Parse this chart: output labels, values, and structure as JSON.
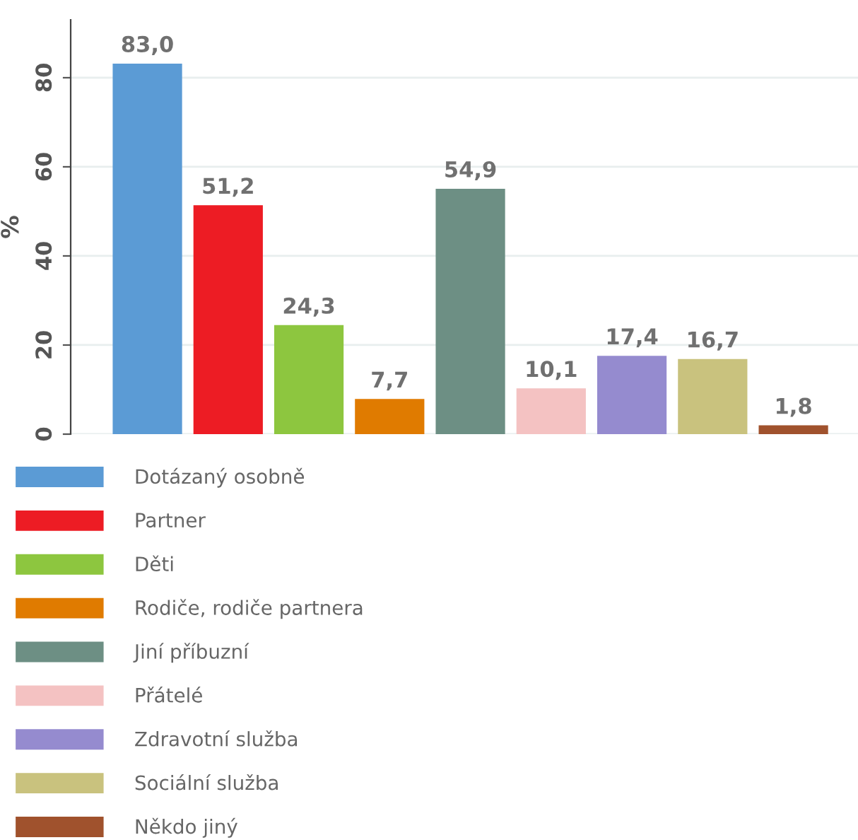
{
  "chart_data": {
    "type": "bar",
    "ylabel": "%",
    "categories": [
      null,
      null,
      null,
      null,
      null,
      null,
      null,
      null,
      null
    ],
    "series": [
      {
        "name": "Dotázaný osobně",
        "color": "#5b9bd5",
        "values": [
          83.0,
          null,
          null,
          null,
          null,
          null,
          null,
          null,
          null
        ],
        "value_labels": [
          "83,0",
          null,
          null,
          null,
          null,
          null,
          null,
          null,
          null
        ]
      },
      {
        "name": "Partner",
        "color": "#ed1c24",
        "values": [
          null,
          51.2,
          null,
          null,
          null,
          null,
          null,
          null,
          null
        ],
        "value_labels": [
          null,
          "51,2",
          null,
          null,
          null,
          null,
          null,
          null,
          null
        ]
      },
      {
        "name": "Děti",
        "color": "#8dc63f",
        "values": [
          null,
          null,
          24.3,
          null,
          null,
          null,
          null,
          null,
          null
        ],
        "value_labels": [
          null,
          null,
          "24,3",
          null,
          null,
          null,
          null,
          null,
          null
        ]
      },
      {
        "name": "Rodiče, rodiče partnera",
        "color": "#e07b00",
        "values": [
          null,
          null,
          null,
          7.7,
          null,
          null,
          null,
          null,
          null
        ],
        "value_labels": [
          null,
          null,
          null,
          "7,7",
          null,
          null,
          null,
          null,
          null
        ]
      },
      {
        "name": "Jiní příbuzní",
        "color": "#6d8f84",
        "values": [
          null,
          null,
          null,
          null,
          54.9,
          null,
          null,
          null,
          null
        ],
        "value_labels": [
          null,
          null,
          null,
          null,
          "54,9",
          null,
          null,
          null,
          null
        ]
      },
      {
        "name": "Přátelé",
        "color": "#f4c2c2",
        "values": [
          null,
          null,
          null,
          null,
          null,
          10.1,
          null,
          null,
          null
        ],
        "value_labels": [
          null,
          null,
          null,
          null,
          null,
          "10,1",
          null,
          null,
          null
        ]
      },
      {
        "name": "Zdravotní služba",
        "color": "#958bcf",
        "values": [
          null,
          null,
          null,
          null,
          null,
          null,
          17.4,
          null,
          null
        ],
        "value_labels": [
          null,
          null,
          null,
          null,
          null,
          null,
          "17,4",
          null,
          null
        ]
      },
      {
        "name": "Sociální služba",
        "color": "#c9c27e",
        "values": [
          null,
          null,
          null,
          null,
          null,
          null,
          null,
          16.7,
          null
        ],
        "value_labels": [
          null,
          null,
          null,
          null,
          null,
          null,
          null,
          "16,7",
          null
        ]
      },
      {
        "name": "Někdo jiný",
        "color": "#a0522d",
        "values": [
          null,
          null,
          null,
          null,
          null,
          null,
          null,
          null,
          1.8
        ],
        "value_labels": [
          null,
          null,
          null,
          null,
          null,
          null,
          null,
          null,
          "1,8"
        ]
      }
    ],
    "ylim": [
      0,
      93
    ],
    "yticks": [
      0,
      20,
      40,
      60,
      80
    ],
    "grid": "y",
    "legend": "bottom",
    "tick_labels": "y"
  }
}
